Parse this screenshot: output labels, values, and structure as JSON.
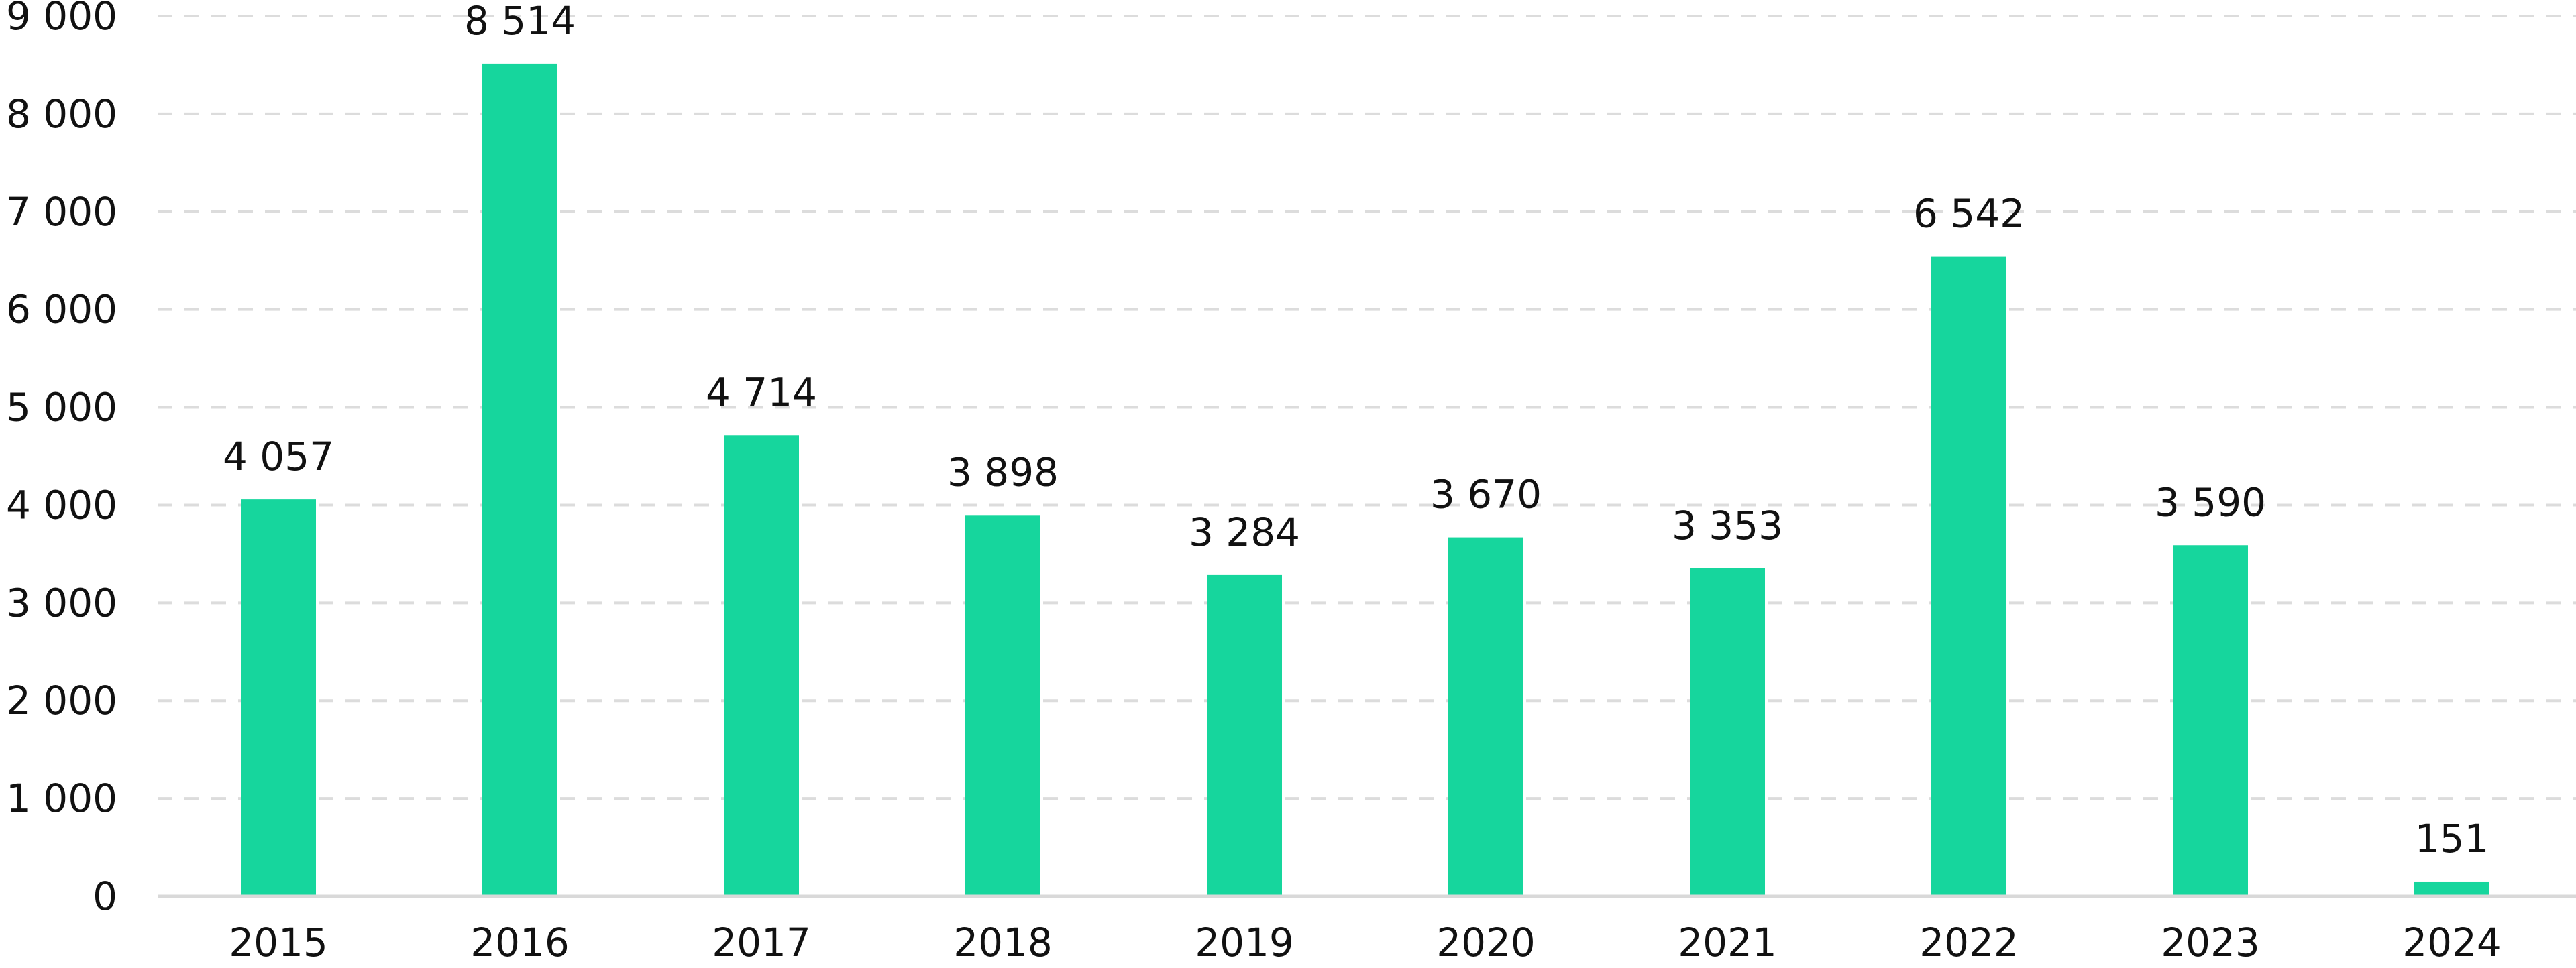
{
  "chart_data": {
    "type": "bar",
    "title": "",
    "xlabel": "",
    "ylabel": "",
    "categories": [
      "2015",
      "2016",
      "2017",
      "2018",
      "2019",
      "2020",
      "2021",
      "2022",
      "2023",
      "2024"
    ],
    "values": [
      4057,
      8514,
      4714,
      3898,
      3284,
      3670,
      3353,
      6542,
      3590,
      151
    ],
    "value_labels": [
      "4 057",
      "8 514",
      "4 714",
      "3 898",
      "3 284",
      "3 670",
      "3 353",
      "6 542",
      "3 590",
      "151"
    ],
    "ylim": [
      0,
      9000
    ],
    "y_ticks": [
      0,
      1000,
      2000,
      3000,
      4000,
      5000,
      6000,
      7000,
      8000,
      9000
    ],
    "y_tick_labels": [
      "0",
      "1 000",
      "2 000",
      "3 000",
      "4 000",
      "5 000",
      "6 000",
      "7 000",
      "8 000",
      "9 000"
    ],
    "grid": true,
    "legend": "none",
    "bar_color": "#16d69d",
    "grid_color": "#dcdcdc",
    "axis_color": "#d9d9d9",
    "text_color": "#111111"
  }
}
